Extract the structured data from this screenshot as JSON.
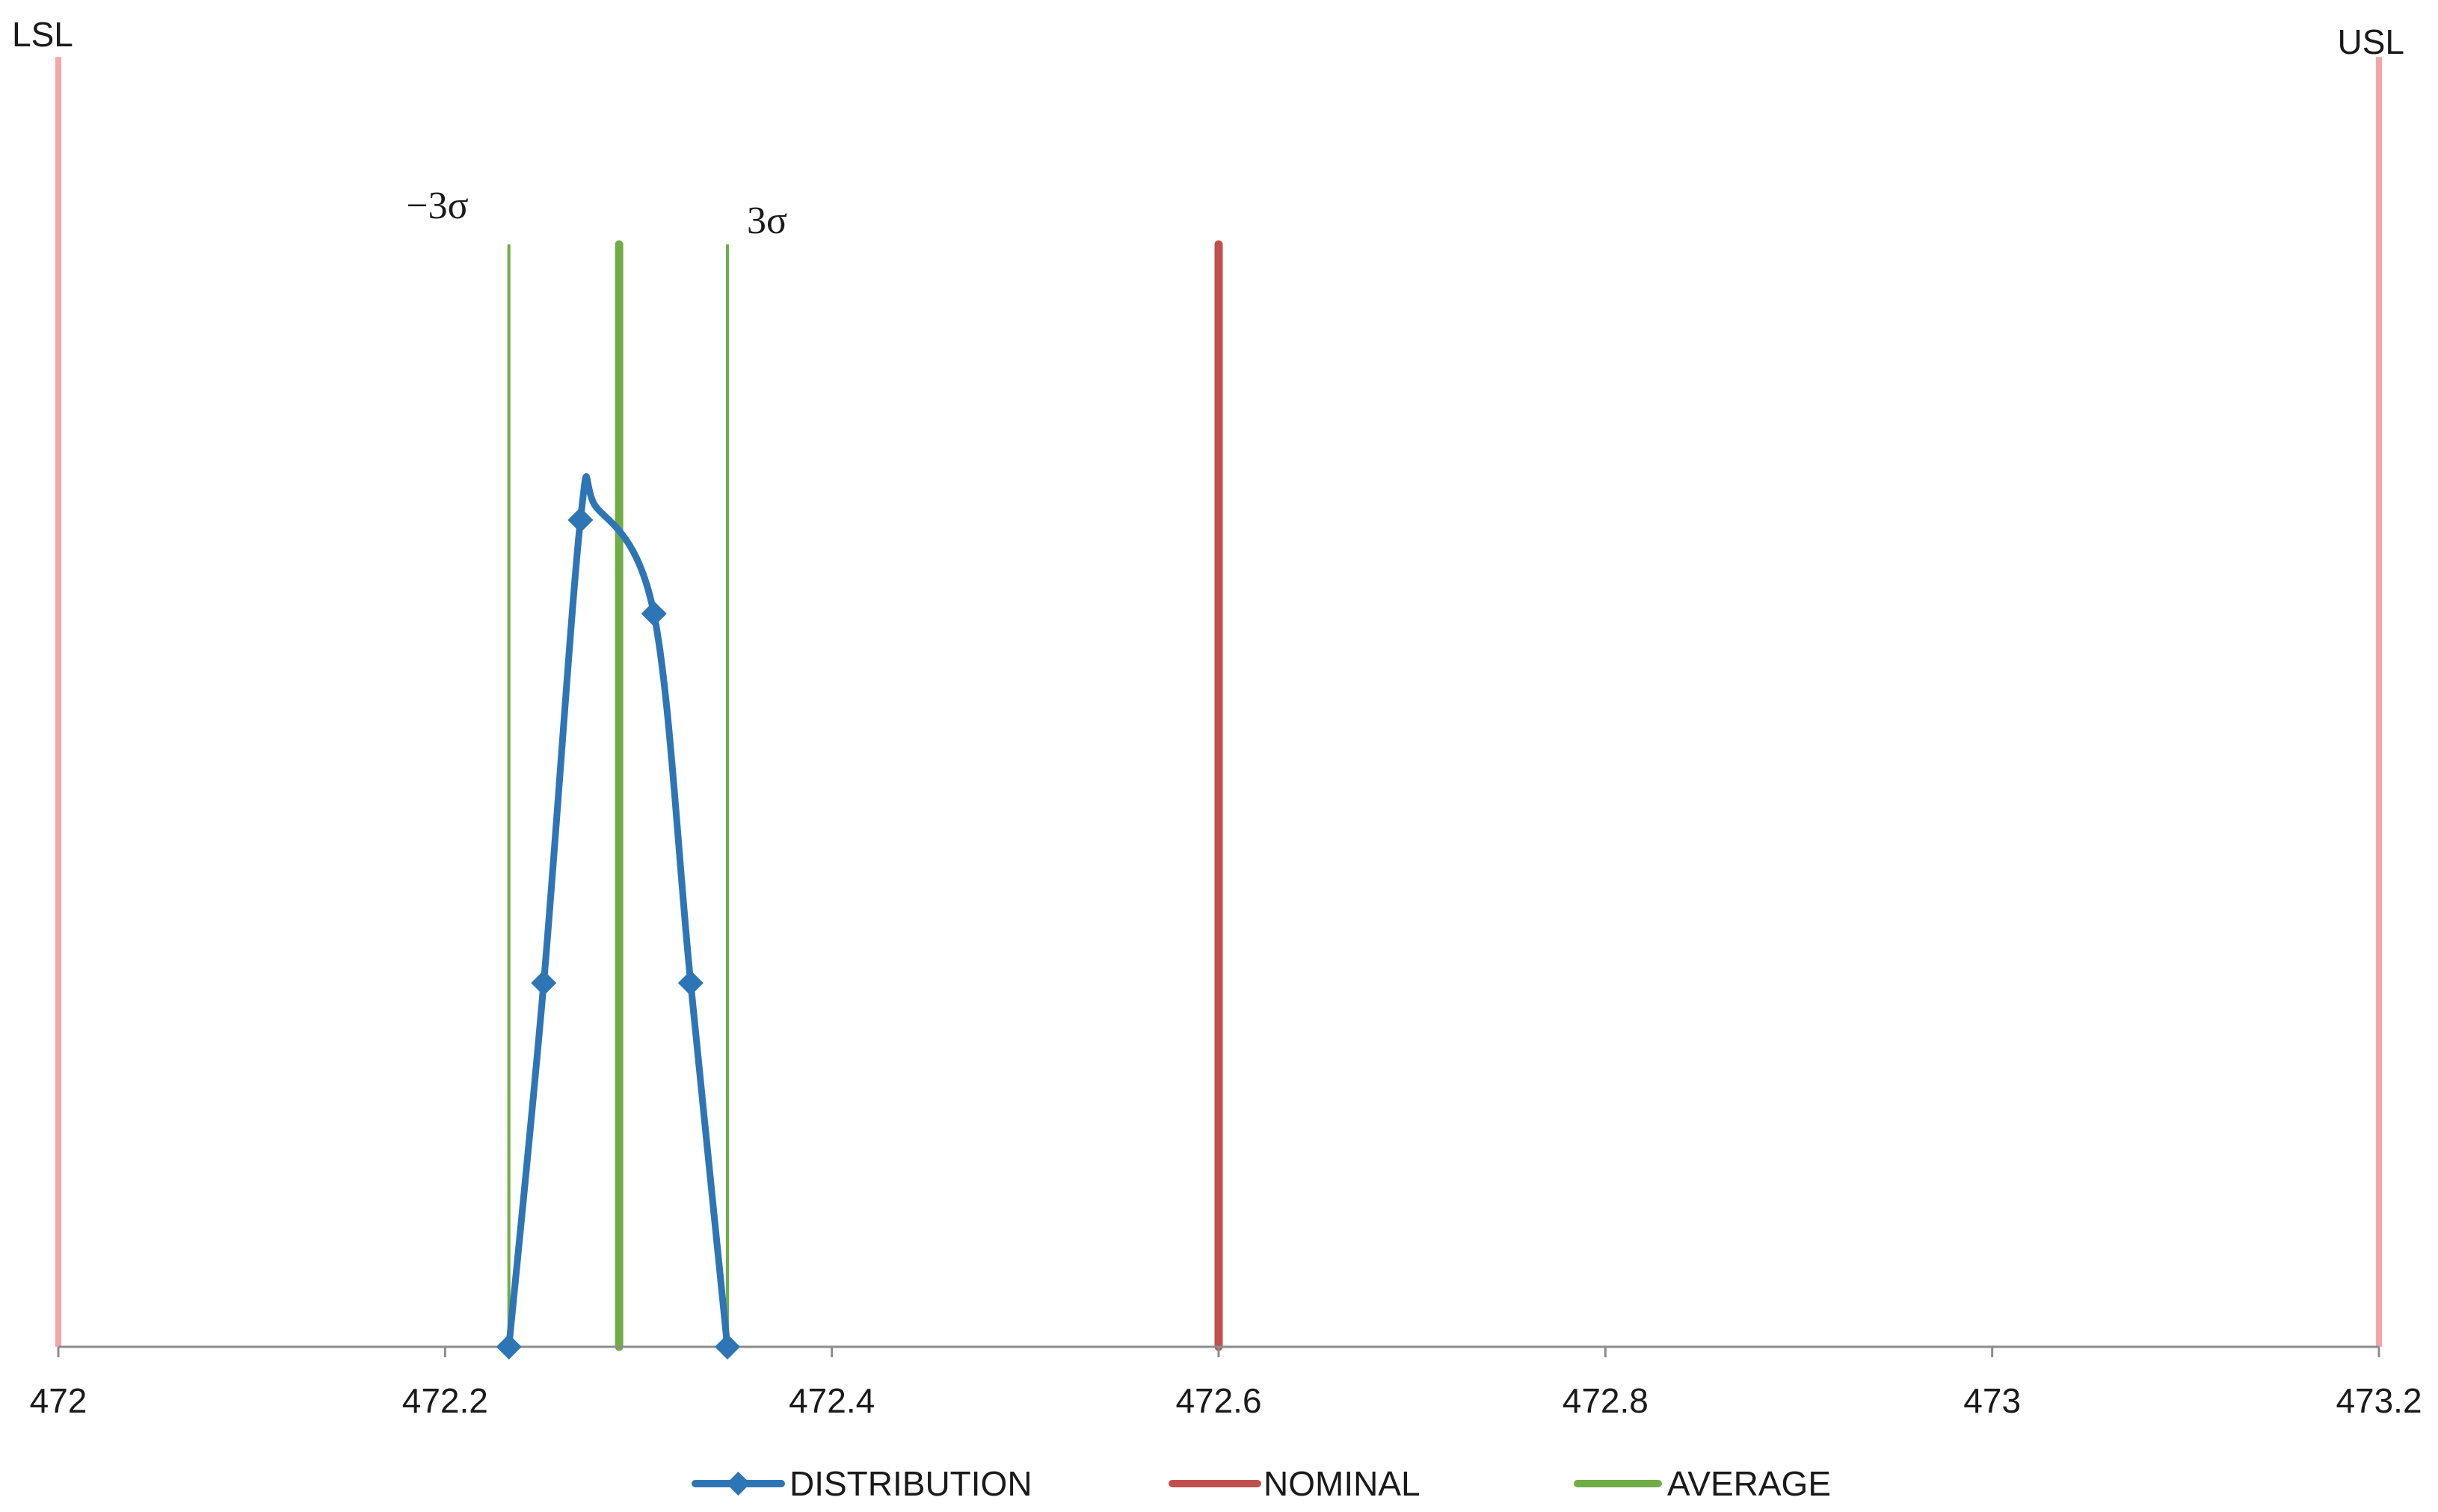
{
  "chart_data": {
    "type": "line",
    "title": "",
    "xlabel": "",
    "ylabel": "",
    "xlim": [
      472,
      473.2
    ],
    "ylim": [
      0,
      1
    ],
    "x_ticks": [
      472,
      472.2,
      472.4,
      472.6,
      472.8,
      473,
      473.2
    ],
    "x_tick_labels": [
      "472",
      "472.2",
      "472.4",
      "472.6",
      "472.8",
      "473",
      "473.2"
    ],
    "grid": false,
    "legend_position": "bottom",
    "series": [
      {
        "name": "DISTRIBUTION",
        "color": "#2E75B6",
        "marker": "diamond",
        "smooth": true,
        "points": [
          {
            "x": 472.233,
            "y": 0
          },
          {
            "x": 472.251,
            "y": 0.33
          },
          {
            "x": 472.27,
            "y": 0.75
          },
          {
            "x": 472.308,
            "y": 0.665
          },
          {
            "x": 472.327,
            "y": 0.33
          },
          {
            "x": 472.346,
            "y": 0
          }
        ],
        "peak": {
          "x": 472.278,
          "y": 0.762
        }
      },
      {
        "name": "NOMINAL",
        "color": "#C0504D",
        "type": "vertical-line",
        "x": 472.6,
        "y_top": 1.0
      },
      {
        "name": "AVERAGE",
        "color": "#70AD47",
        "type": "vertical-line",
        "x": 472.29,
        "y_top": 1.0
      }
    ],
    "reference_lines": [
      {
        "label": "LSL",
        "x": 472.0,
        "color": "#F4A6A6",
        "y_top": 1.17
      },
      {
        "label": "USL",
        "x": 473.2,
        "color": "#F4A6A6",
        "y_top": 1.17
      },
      {
        "label": "−3σ",
        "x": 472.233,
        "color": "#70AD47",
        "y_top": 1.0
      },
      {
        "label": "3σ",
        "x": 472.346,
        "color": "#70AD47",
        "y_top": 1.0
      }
    ]
  }
}
